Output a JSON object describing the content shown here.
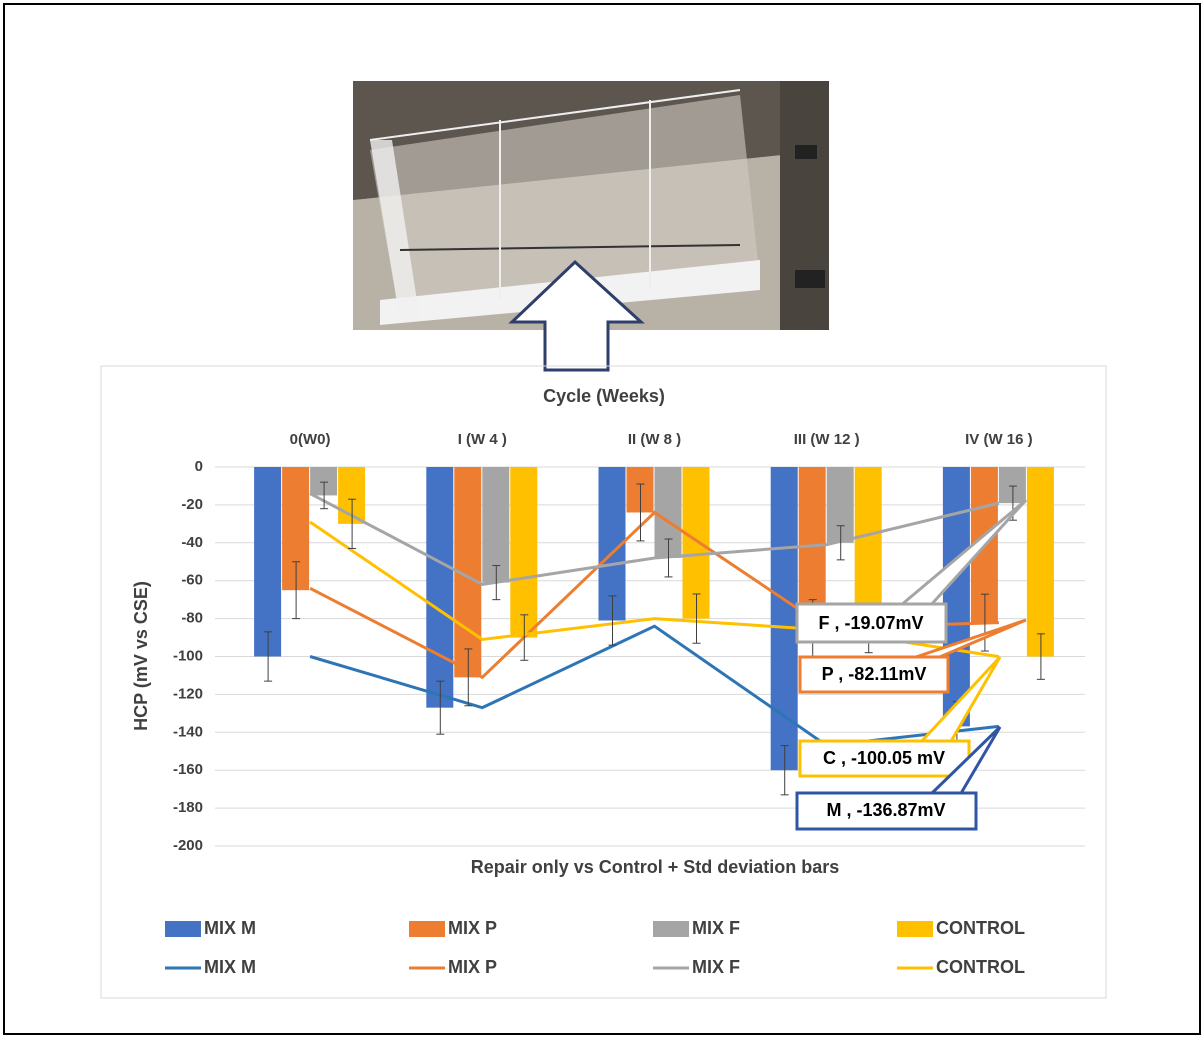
{
  "chart_data": {
    "type": "bar",
    "title": "Cycle (Weeks)",
    "x_label": "Repair only vs Control + Std deviation bars",
    "y_label": "HCP (mV vs CSE)",
    "categories": [
      "0(W0)",
      "I (W 4 )",
      "II (W 8 )",
      "III (W 12 )",
      "IV (W 16 )"
    ],
    "ylim": [
      -200,
      0
    ],
    "yticks": [
      0,
      -20,
      -40,
      -60,
      -80,
      -100,
      -120,
      -140,
      -160,
      -180,
      -200
    ],
    "grid": true,
    "series": [
      {
        "name": "MIX M",
        "type": "bar",
        "color": "#4472c4",
        "values": [
          -100,
          -127,
          -81,
          -160,
          -136.87
        ],
        "errors": [
          13,
          14,
          13,
          13,
          13
        ]
      },
      {
        "name": "MIX P",
        "type": "bar",
        "color": "#ed7d31",
        "values": [
          -65,
          -111,
          -24,
          -85,
          -82.11
        ],
        "errors": [
          15,
          15,
          15,
          15,
          15
        ]
      },
      {
        "name": "MIX F",
        "type": "bar",
        "color": "#a5a5a5",
        "values": [
          -15,
          -61,
          -48,
          -40,
          -19.07
        ],
        "errors": [
          7,
          9,
          10,
          9,
          9
        ]
      },
      {
        "name": "CONTROL",
        "type": "bar",
        "color": "#ffc000",
        "values": [
          -30,
          -90,
          -80,
          -86,
          -100.05
        ],
        "errors": [
          13,
          12,
          13,
          12,
          12
        ]
      },
      {
        "name": "MIX M",
        "type": "line",
        "color": "#2e75b6",
        "values": [
          -100,
          -127,
          -84,
          -147,
          -136.87
        ]
      },
      {
        "name": "MIX P",
        "type": "line",
        "color": "#ed7d31",
        "values": [
          -64,
          -111,
          -24,
          -85,
          -82.11
        ]
      },
      {
        "name": "MIX F",
        "type": "line",
        "color": "#a5a5a5",
        "values": [
          -14,
          -62,
          -48,
          -41,
          -19.07
        ]
      },
      {
        "name": "CONTROL",
        "type": "line",
        "color": "#ffc000",
        "values": [
          -29,
          -91,
          -80,
          -86,
          -100.05
        ]
      }
    ],
    "annotations": [
      "F , -19.07mV",
      "P , -82.11mV",
      "C , -100.05 mV",
      "M , -136.87mV"
    ]
  }
}
